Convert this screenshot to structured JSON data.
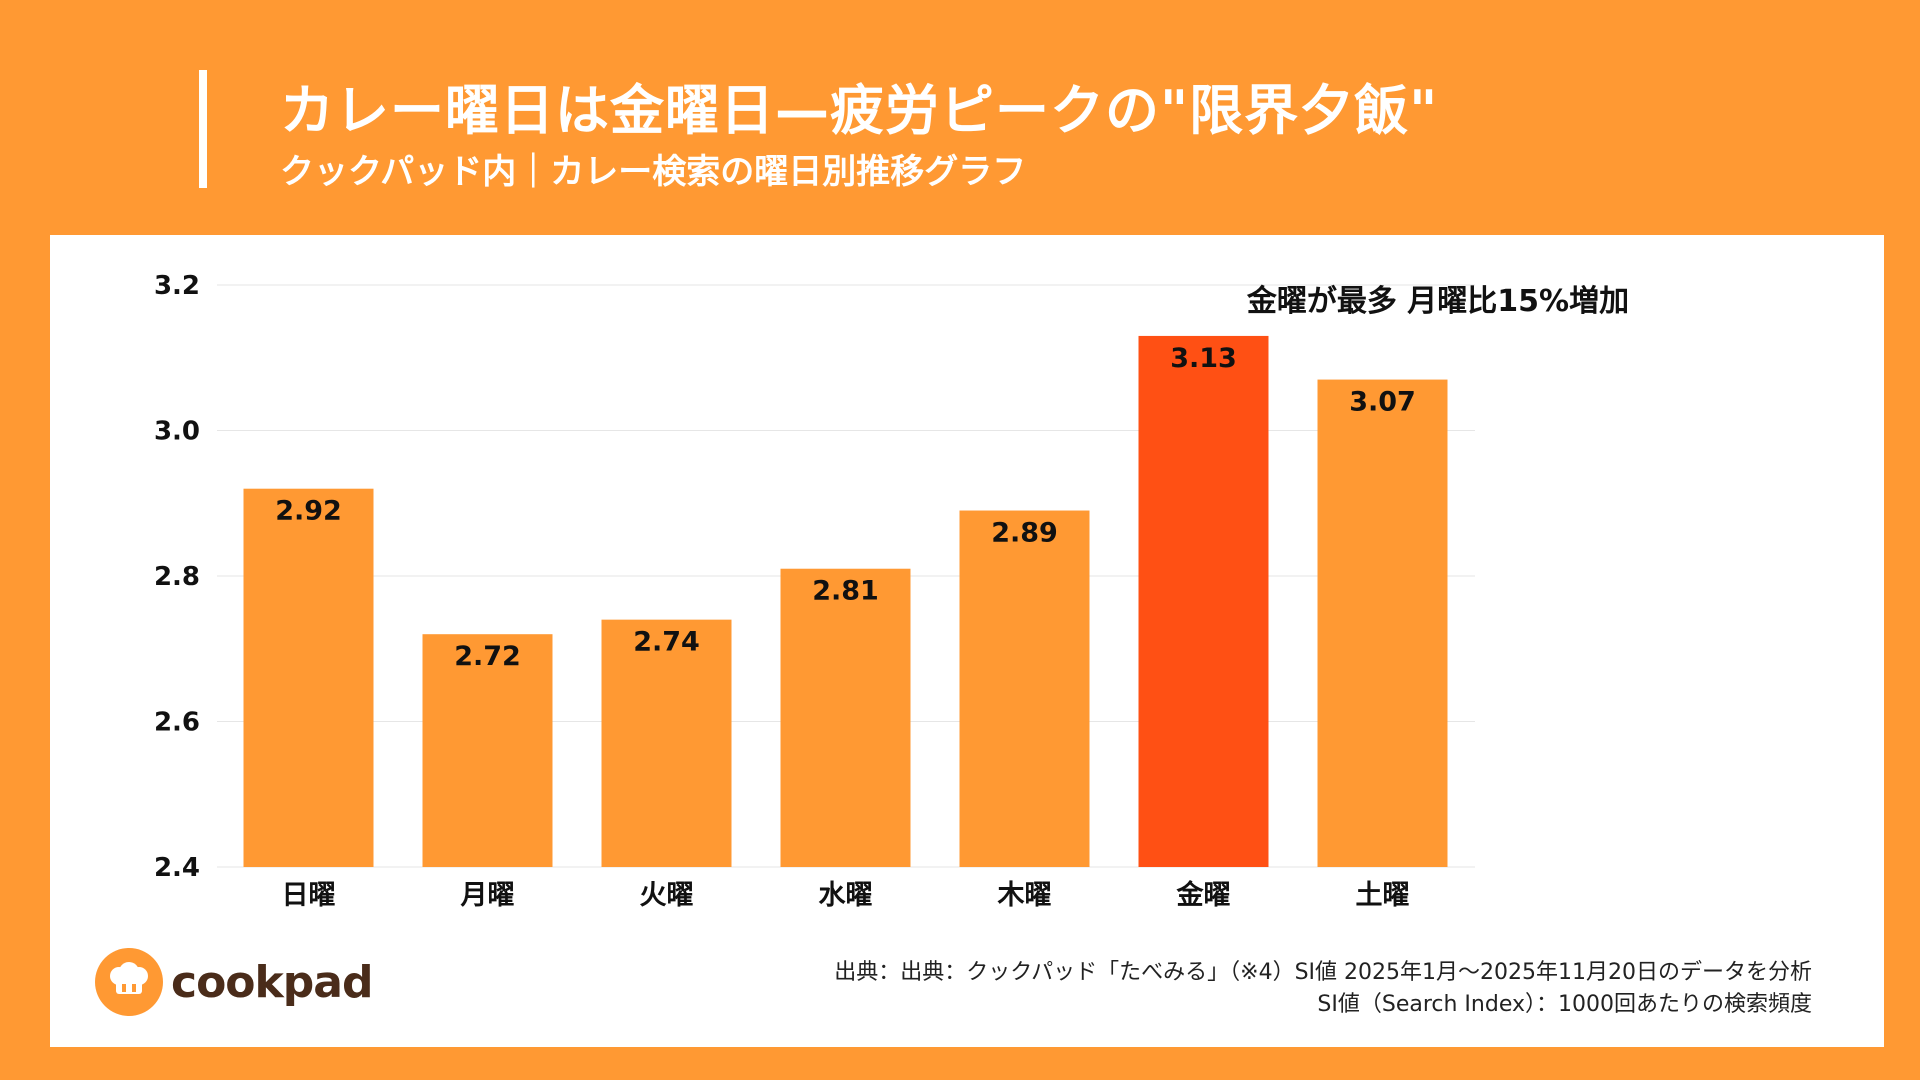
{
  "header": {
    "title": "カレー曜日は金曜日—疲労ピークの\"限界夕飯\"",
    "subtitle": "クックパッド内｜カレー検索の曜日別推移グラフ"
  },
  "colors": {
    "background": "#FF9933",
    "bar": "#FF9933",
    "highlight_bar": "#FF5014",
    "panel": "#FFFFFF"
  },
  "chart_data": {
    "type": "bar",
    "categories": [
      "日曜",
      "月曜",
      "火曜",
      "水曜",
      "木曜",
      "金曜",
      "土曜"
    ],
    "values": [
      2.92,
      2.72,
      2.74,
      2.81,
      2.89,
      3.13,
      3.07
    ],
    "value_labels": [
      "2.92",
      "2.72",
      "2.74",
      "2.81",
      "2.89",
      "3.13",
      "3.07"
    ],
    "highlight_category": "金曜",
    "ylim": [
      2.4,
      3.2
    ],
    "yticks": [
      "2.4",
      "2.6",
      "2.8",
      "3.0",
      "3.2"
    ],
    "annotation": "金曜が最多 月曜比15%増加",
    "grid": true,
    "title": "",
    "xlabel": "",
    "ylabel": ""
  },
  "footer": {
    "logo_text": "cookpad",
    "source_line1": "出典：出典：クックパッド「たべみる」（※4）SI値 2025年1月〜2025年11月20日のデータを分析",
    "source_line2": "SI値（Search Index）：1000回あたりの検索頻度"
  }
}
